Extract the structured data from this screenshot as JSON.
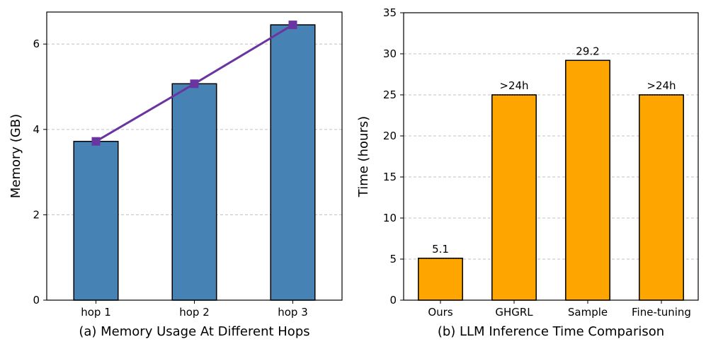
{
  "chart_data": [
    {
      "type": "bar",
      "title": "(a) Memory Usage At Different Hops",
      "xlabel": "(a) Memory Usage At Different Hops",
      "ylabel": "Memory (GB)",
      "categories": [
        "hop 1",
        "hop 2",
        "hop 3"
      ],
      "values": [
        3.72,
        5.07,
        6.45
      ],
      "overlay_line": {
        "type": "line",
        "values": [
          3.72,
          5.07,
          6.45
        ],
        "marker": "square",
        "color": "#6a35a0"
      },
      "ylim": [
        0,
        6.75
      ],
      "yticks": [
        "0",
        "2",
        "4",
        "6"
      ],
      "ytick_values": [
        0,
        2,
        4,
        6
      ],
      "grid": "y-dashed",
      "bar_color": "#4682b4"
    },
    {
      "type": "bar",
      "title": "(b) LLM Inference Time Comparison",
      "xlabel": "(b) LLM Inference Time Comparison",
      "ylabel": "Time (hours)",
      "categories": [
        "Ours",
        "GHGRL",
        "Sample",
        "Fine-tuning"
      ],
      "values": [
        5.1,
        25,
        29.2,
        25
      ],
      "data_labels": [
        "5.1",
        ">24h",
        "29.2",
        ">24h"
      ],
      "ylim": [
        0,
        35
      ],
      "yticks": [
        "0",
        "5",
        "10",
        "15",
        "20",
        "25",
        "30",
        "35"
      ],
      "ytick_values": [
        0,
        5,
        10,
        15,
        20,
        25,
        30,
        35
      ],
      "grid": "y-dashed",
      "bar_color": "#ffa500"
    }
  ]
}
